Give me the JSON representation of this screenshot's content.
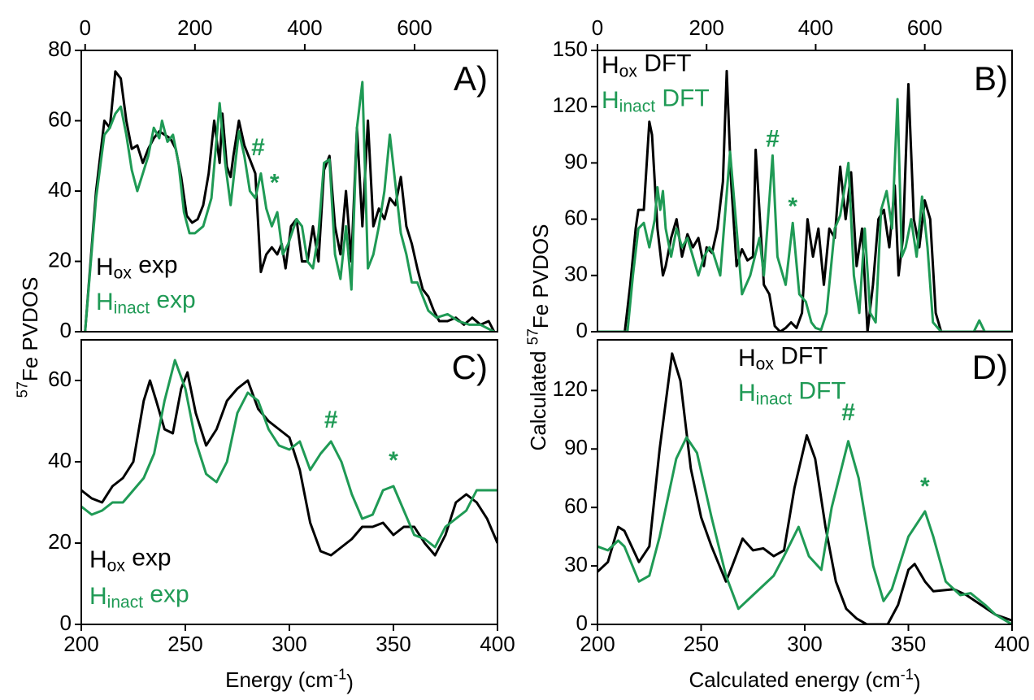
{
  "chart_data": [
    {
      "type": "line",
      "panel_label": "A)",
      "ylabel": "57Fe PVDOS",
      "xaxis": "top",
      "xlim": [
        -7,
        751
      ],
      "xticks": [
        0,
        200,
        400,
        600
      ],
      "ylim": [
        0,
        80
      ],
      "yticks": [
        0,
        20,
        40,
        60,
        80
      ],
      "annotations": [
        "#",
        "*"
      ],
      "annotation_color": "#1f9a55",
      "series": [
        {
          "name": "Hox exp",
          "color": "#000000",
          "x": [
            0,
            20,
            35,
            45,
            55,
            65,
            75,
            85,
            95,
            105,
            115,
            125,
            135,
            145,
            155,
            165,
            175,
            185,
            195,
            205,
            215,
            225,
            235,
            245,
            250,
            258,
            265,
            270,
            280,
            290,
            300,
            310,
            320,
            330,
            340,
            350,
            358,
            365,
            375,
            385,
            395,
            405,
            415,
            425,
            435,
            445,
            455,
            465,
            475,
            485,
            495,
            505,
            515,
            525,
            535,
            545,
            555,
            565,
            575,
            585,
            595,
            605,
            615,
            625,
            635,
            645,
            660,
            675,
            690,
            705,
            720,
            735,
            745
          ],
          "values": [
            0,
            40,
            60,
            58,
            74,
            72,
            60,
            52,
            53,
            48,
            52,
            55,
            57,
            56,
            55,
            52,
            44,
            33,
            31,
            32,
            36,
            45,
            60,
            48,
            62,
            47,
            44,
            50,
            60,
            53,
            49,
            45,
            17,
            22,
            24,
            22,
            25,
            18,
            30,
            32,
            20,
            20,
            30,
            20,
            46,
            50,
            30,
            22,
            40,
            20,
            58,
            30,
            60,
            30,
            35,
            32,
            38,
            36,
            44,
            30,
            25,
            18,
            12,
            10,
            6,
            3,
            3,
            4,
            2,
            4,
            2,
            3,
            0
          ]
        },
        {
          "name": "Hinact exp",
          "color": "#1f9a55",
          "x": [
            0,
            20,
            35,
            45,
            55,
            65,
            75,
            85,
            95,
            105,
            115,
            125,
            135,
            140,
            150,
            160,
            170,
            180,
            190,
            200,
            215,
            230,
            245,
            255,
            265,
            280,
            290,
            300,
            310,
            320,
            330,
            340,
            350,
            360,
            370,
            385,
            395,
            405,
            415,
            425,
            435,
            445,
            455,
            465,
            475,
            485,
            495,
            505,
            515,
            525,
            535,
            545,
            555,
            565,
            575,
            585,
            595,
            605,
            615,
            625,
            640,
            660,
            680,
            700,
            720,
            745
          ],
          "values": [
            0,
            38,
            56,
            58,
            62,
            64,
            56,
            46,
            40,
            45,
            50,
            58,
            55,
            60,
            54,
            56,
            48,
            34,
            28,
            28,
            30,
            38,
            65,
            48,
            36,
            57,
            50,
            40,
            38,
            45,
            35,
            30,
            34,
            22,
            25,
            32,
            30,
            20,
            18,
            28,
            48,
            49,
            22,
            15,
            30,
            12,
            58,
            71,
            18,
            22,
            30,
            40,
            56,
            42,
            28,
            22,
            14,
            14,
            10,
            6,
            4,
            5,
            3,
            2,
            2,
            0
          ]
        }
      ]
    },
    {
      "type": "line",
      "panel_label": "B)",
      "ylabel": "Calculated 57Fe PVDOS",
      "xaxis": "top",
      "xlim": [
        0,
        760
      ],
      "xticks": [
        0,
        200,
        400,
        600
      ],
      "ylim": [
        0,
        150
      ],
      "yticks": [
        0,
        30,
        60,
        90,
        120,
        150
      ],
      "annotations": [
        "#",
        "*"
      ],
      "annotation_color": "#1f9a55",
      "series": [
        {
          "name": "Hox DFT",
          "color": "#000000",
          "x": [
            0,
            50,
            60,
            70,
            75,
            85,
            95,
            100,
            110,
            120,
            125,
            135,
            145,
            155,
            165,
            175,
            185,
            195,
            200,
            210,
            220,
            230,
            237,
            245,
            255,
            265,
            275,
            285,
            290,
            300,
            305,
            315,
            325,
            335,
            345,
            355,
            365,
            375,
            385,
            395,
            405,
            415,
            425,
            435,
            445,
            455,
            465,
            475,
            485,
            495,
            505,
            515,
            525,
            535,
            545,
            552,
            560,
            570,
            580,
            590,
            600,
            610,
            620,
            630,
            760
          ],
          "values": [
            0,
            0,
            25,
            55,
            65,
            65,
            112,
            105,
            55,
            30,
            35,
            50,
            60,
            40,
            52,
            45,
            50,
            35,
            45,
            42,
            55,
            80,
            139,
            80,
            35,
            44,
            38,
            40,
            97,
            50,
            25,
            20,
            3,
            0,
            2,
            5,
            2,
            10,
            60,
            40,
            55,
            25,
            55,
            50,
            88,
            60,
            85,
            35,
            55,
            0,
            25,
            60,
            65,
            45,
            78,
            30,
            50,
            132,
            60,
            45,
            70,
            60,
            10,
            0,
            0
          ]
        },
        {
          "name": "Hinact DFT",
          "color": "#1f9a55",
          "x": [
            0,
            55,
            65,
            75,
            85,
            95,
            105,
            110,
            115,
            120,
            125,
            135,
            145,
            155,
            165,
            175,
            185,
            195,
            205,
            212,
            225,
            243,
            255,
            265,
            280,
            297,
            305,
            321,
            330,
            345,
            358,
            370,
            382,
            392,
            400,
            410,
            420,
            435,
            445,
            455,
            460,
            470,
            480,
            490,
            500,
            510,
            520,
            530,
            540,
            550,
            558,
            565,
            575,
            585,
            595,
            605,
            615,
            630,
            690,
            700,
            710,
            760
          ],
          "values": [
            0,
            0,
            30,
            55,
            58,
            45,
            60,
            77,
            65,
            75,
            55,
            40,
            55,
            45,
            50,
            40,
            30,
            40,
            45,
            42,
            30,
            96,
            55,
            20,
            30,
            50,
            30,
            94,
            40,
            25,
            58,
            20,
            16,
            5,
            2,
            1,
            10,
            55,
            62,
            80,
            90,
            30,
            10,
            55,
            10,
            5,
            65,
            75,
            55,
            124,
            40,
            45,
            60,
            40,
            72,
            45,
            5,
            0,
            0,
            6,
            0,
            0
          ]
        }
      ]
    },
    {
      "type": "line",
      "panel_label": "C)",
      "xlabel": "Energy (cm-1)",
      "xaxis": "bottom",
      "xlim": [
        200,
        400
      ],
      "xticks": [
        200,
        250,
        300,
        350,
        400
      ],
      "ylim": [
        0,
        70
      ],
      "yticks": [
        0,
        20,
        40,
        60
      ],
      "annotations": [
        "#",
        "*"
      ],
      "annotation_color": "#1f9a55",
      "series": [
        {
          "name": "Hox exp",
          "color": "#000000",
          "x": [
            200,
            205,
            210,
            215,
            220,
            225,
            230,
            233,
            236,
            240,
            244,
            248,
            251,
            255,
            260,
            265,
            270,
            275,
            280,
            285,
            290,
            300,
            305,
            310,
            315,
            320,
            325,
            330,
            335,
            340,
            345,
            350,
            355,
            360,
            365,
            370,
            375,
            380,
            385,
            390,
            395,
            400
          ],
          "values": [
            33,
            31,
            30,
            34,
            36,
            40,
            55,
            60,
            55,
            48,
            47,
            58,
            62,
            52,
            44,
            48,
            55,
            58,
            60,
            53,
            50,
            46,
            38,
            25,
            18,
            17,
            19,
            21,
            24,
            24,
            25,
            22,
            24,
            24,
            20,
            17,
            22,
            30,
            32,
            30,
            26,
            20
          ]
        },
        {
          "name": "Hinact exp",
          "color": "#1f9a55",
          "x": [
            200,
            205,
            210,
            215,
            220,
            225,
            230,
            235,
            240,
            245,
            250,
            255,
            260,
            265,
            270,
            275,
            280,
            285,
            290,
            295,
            300,
            305,
            310,
            315,
            320,
            325,
            330,
            335,
            340,
            345,
            350,
            355,
            360,
            365,
            370,
            375,
            380,
            385,
            390,
            395,
            400
          ],
          "values": [
            29,
            27,
            28,
            30,
            30,
            33,
            36,
            42,
            55,
            65,
            58,
            45,
            37,
            35,
            40,
            52,
            57,
            55,
            48,
            44,
            43,
            45,
            38,
            42,
            45,
            40,
            32,
            26,
            27,
            33,
            34,
            28,
            22,
            21,
            19,
            24,
            26,
            28,
            33,
            33,
            33
          ]
        }
      ]
    },
    {
      "type": "line",
      "panel_label": "D)",
      "xlabel": "Calculated energy (cm-1)",
      "xaxis": "bottom",
      "xlim": [
        200,
        400
      ],
      "xticks": [
        200,
        250,
        300,
        350,
        400
      ],
      "ylim": [
        0,
        146
      ],
      "yticks": [
        0,
        30,
        60,
        90,
        120
      ],
      "annotations": [
        "#",
        "*"
      ],
      "annotation_color": "#1f9a55",
      "series": [
        {
          "name": "Hox DFT",
          "color": "#000000",
          "x": [
            200,
            205,
            210,
            213,
            220,
            225,
            230,
            236,
            240,
            245,
            250,
            255,
            262,
            265,
            270,
            275,
            280,
            285,
            290,
            295,
            301,
            305,
            310,
            315,
            320,
            325,
            330,
            340,
            345,
            350,
            353,
            358,
            362,
            372,
            378,
            385,
            392,
            400
          ],
          "values": [
            27,
            32,
            50,
            48,
            32,
            40,
            90,
            139,
            125,
            80,
            55,
            40,
            22,
            30,
            44,
            38,
            39,
            35,
            38,
            70,
            97,
            85,
            50,
            22,
            8,
            3,
            0,
            0,
            10,
            28,
            31,
            22,
            17,
            18,
            15,
            10,
            5,
            2
          ]
        },
        {
          "name": "Hinact DFT",
          "color": "#1f9a55",
          "x": [
            200,
            205,
            210,
            213,
            220,
            225,
            230,
            238,
            243,
            248,
            255,
            262,
            268,
            275,
            285,
            290,
            297,
            302,
            308,
            313,
            321,
            326,
            333,
            338,
            342,
            350,
            358,
            362,
            368,
            375,
            380,
            387,
            392,
            400
          ],
          "values": [
            40,
            38,
            43,
            40,
            22,
            25,
            45,
            85,
            96,
            88,
            55,
            25,
            8,
            15,
            25,
            35,
            50,
            35,
            28,
            60,
            94,
            75,
            30,
            12,
            18,
            45,
            58,
            45,
            22,
            15,
            16,
            10,
            5,
            0
          ]
        }
      ]
    }
  ]
}
